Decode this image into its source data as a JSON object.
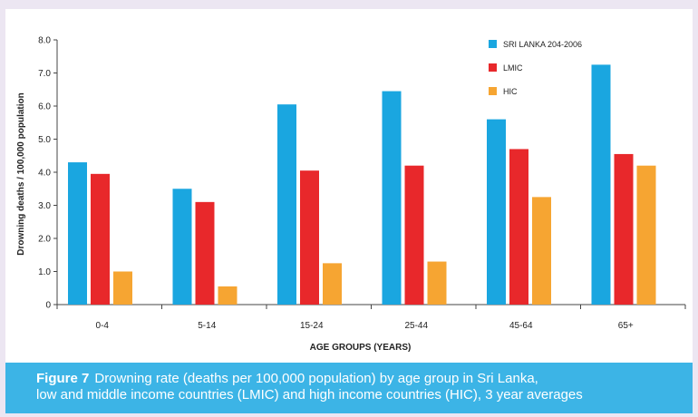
{
  "chart_data": {
    "type": "bar",
    "xlabel": "AGE GROUPS (YEARS)",
    "ylabel": "Drowning deaths / 100,000 population",
    "ylim": [
      0,
      8
    ],
    "yticks": [
      "0",
      "1.0",
      "2.0",
      "3.0",
      "4.0",
      "5.0",
      "6.0",
      "7.0",
      "8.0"
    ],
    "categories": [
      "0-4",
      "5-14",
      "15-24",
      "25-44",
      "45-64",
      "65+"
    ],
    "series": [
      {
        "name": "SRI LANKA 204-2006",
        "color": "#1aa6e0",
        "values": [
          4.3,
          3.5,
          6.05,
          6.45,
          5.6,
          7.25
        ]
      },
      {
        "name": "LMIC",
        "color": "#e8282b",
        "values": [
          3.95,
          3.1,
          4.05,
          4.2,
          4.7,
          4.55
        ]
      },
      {
        "name": "HIC",
        "color": "#f6a532",
        "values": [
          1.0,
          0.55,
          1.25,
          1.3,
          3.25,
          4.2
        ]
      }
    ],
    "legend_position": "top-right",
    "grid": false
  },
  "caption": {
    "label": "Figure 7",
    "line1": "Drowning rate (deaths per 100,000 population) by age group in Sri Lanka,",
    "line2": "low and middle income countries (LMIC) and high income countries (HIC), 3 year averages"
  }
}
